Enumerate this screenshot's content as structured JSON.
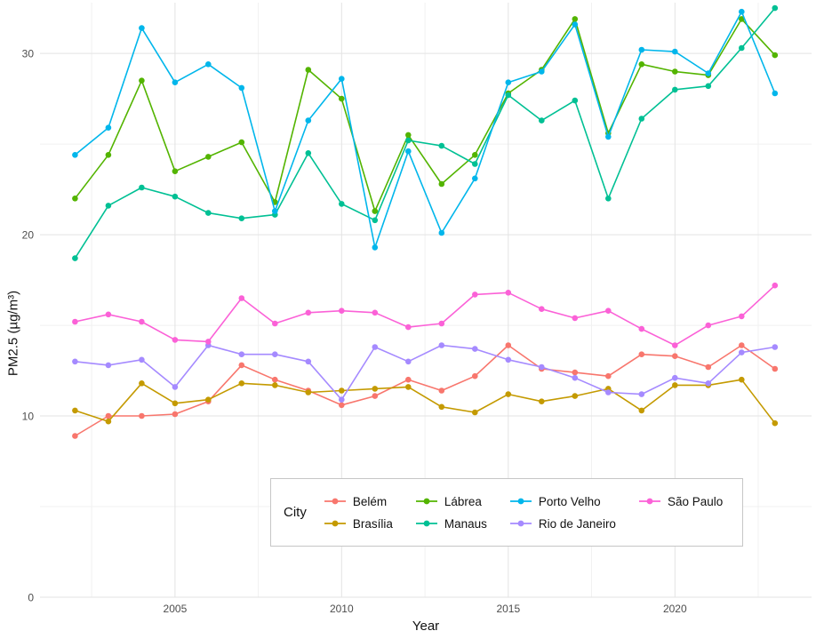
{
  "chart_data": {
    "type": "line",
    "title": "",
    "xlabel": "Year",
    "ylabel": "PM2.5 (µg/m³)",
    "xlim": [
      2000.95,
      2024.1
    ],
    "ylim": [
      0,
      32.8
    ],
    "x_ticks": [
      2005,
      2010,
      2015,
      2020
    ],
    "y_ticks": [
      0,
      10,
      20,
      30
    ],
    "x_minor": [
      2002.5,
      2007.5,
      2012.5,
      2017.5,
      2022.5
    ],
    "y_minor": [
      5,
      15,
      25
    ],
    "grid": true,
    "x": [
      2002,
      2003,
      2004,
      2005,
      2006,
      2007,
      2008,
      2009,
      2010,
      2011,
      2012,
      2013,
      2014,
      2015,
      2016,
      2017,
      2018,
      2019,
      2020,
      2021,
      2022,
      2023
    ],
    "series": [
      {
        "id": "belem",
        "name": "Belém",
        "color": "#F8766D",
        "values": [
          8.9,
          10.0,
          10.0,
          10.1,
          10.8,
          12.8,
          12.0,
          11.4,
          10.6,
          11.1,
          12.0,
          11.4,
          12.2,
          13.9,
          12.6,
          12.4,
          12.2,
          13.4,
          13.3,
          12.7,
          13.9,
          12.6
        ]
      },
      {
        "id": "brasilia",
        "name": "Brasília",
        "color": "#C49A00",
        "values": [
          10.3,
          9.7,
          11.8,
          10.7,
          10.9,
          11.8,
          11.7,
          11.3,
          11.4,
          11.5,
          11.6,
          10.5,
          10.2,
          11.2,
          10.8,
          11.1,
          11.5,
          10.3,
          11.7,
          11.7,
          12.0,
          9.6
        ]
      },
      {
        "id": "labrea",
        "name": "Lábrea",
        "color": "#53B400",
        "values": [
          22.0,
          24.4,
          28.5,
          23.5,
          24.3,
          25.1,
          21.8,
          29.1,
          27.5,
          21.3,
          25.5,
          22.8,
          24.4,
          27.8,
          29.1,
          31.9,
          25.6,
          29.4,
          29.0,
          28.8,
          31.9,
          29.9
        ]
      },
      {
        "id": "manaus",
        "name": "Manaus",
        "color": "#00C094",
        "values": [
          18.7,
          21.6,
          22.6,
          22.1,
          21.2,
          20.9,
          21.1,
          24.5,
          21.7,
          20.8,
          25.2,
          24.9,
          23.9,
          27.7,
          26.3,
          27.4,
          22.0,
          26.4,
          28.0,
          28.2,
          30.3,
          32.5
        ]
      },
      {
        "id": "porto-velho",
        "name": "Porto Velho",
        "color": "#00B6EB",
        "values": [
          24.4,
          25.9,
          31.4,
          28.4,
          29.4,
          28.1,
          21.3,
          26.3,
          28.6,
          19.3,
          24.6,
          20.1,
          23.1,
          28.4,
          29.0,
          31.6,
          25.4,
          30.2,
          30.1,
          28.9,
          32.3,
          27.8
        ]
      },
      {
        "id": "rio-de-janeiro",
        "name": "Rio de Janeiro",
        "color": "#A58AFF",
        "values": [
          13.0,
          12.8,
          13.1,
          11.6,
          13.9,
          13.4,
          13.4,
          13.0,
          10.9,
          13.8,
          13.0,
          13.9,
          13.7,
          13.1,
          12.7,
          12.1,
          11.3,
          11.2,
          12.1,
          11.8,
          13.5,
          13.8
        ]
      },
      {
        "id": "sao-paulo",
        "name": "São Paulo",
        "color": "#FB61D7",
        "values": [
          15.2,
          15.6,
          15.2,
          14.2,
          14.1,
          16.5,
          15.1,
          15.7,
          15.8,
          15.7,
          14.9,
          15.1,
          16.7,
          16.8,
          15.9,
          15.4,
          15.8,
          14.8,
          13.9,
          15.0,
          15.5,
          17.2
        ]
      }
    ],
    "legend": {
      "title": "City",
      "position": "bottom-center-box",
      "rows": 2
    }
  }
}
